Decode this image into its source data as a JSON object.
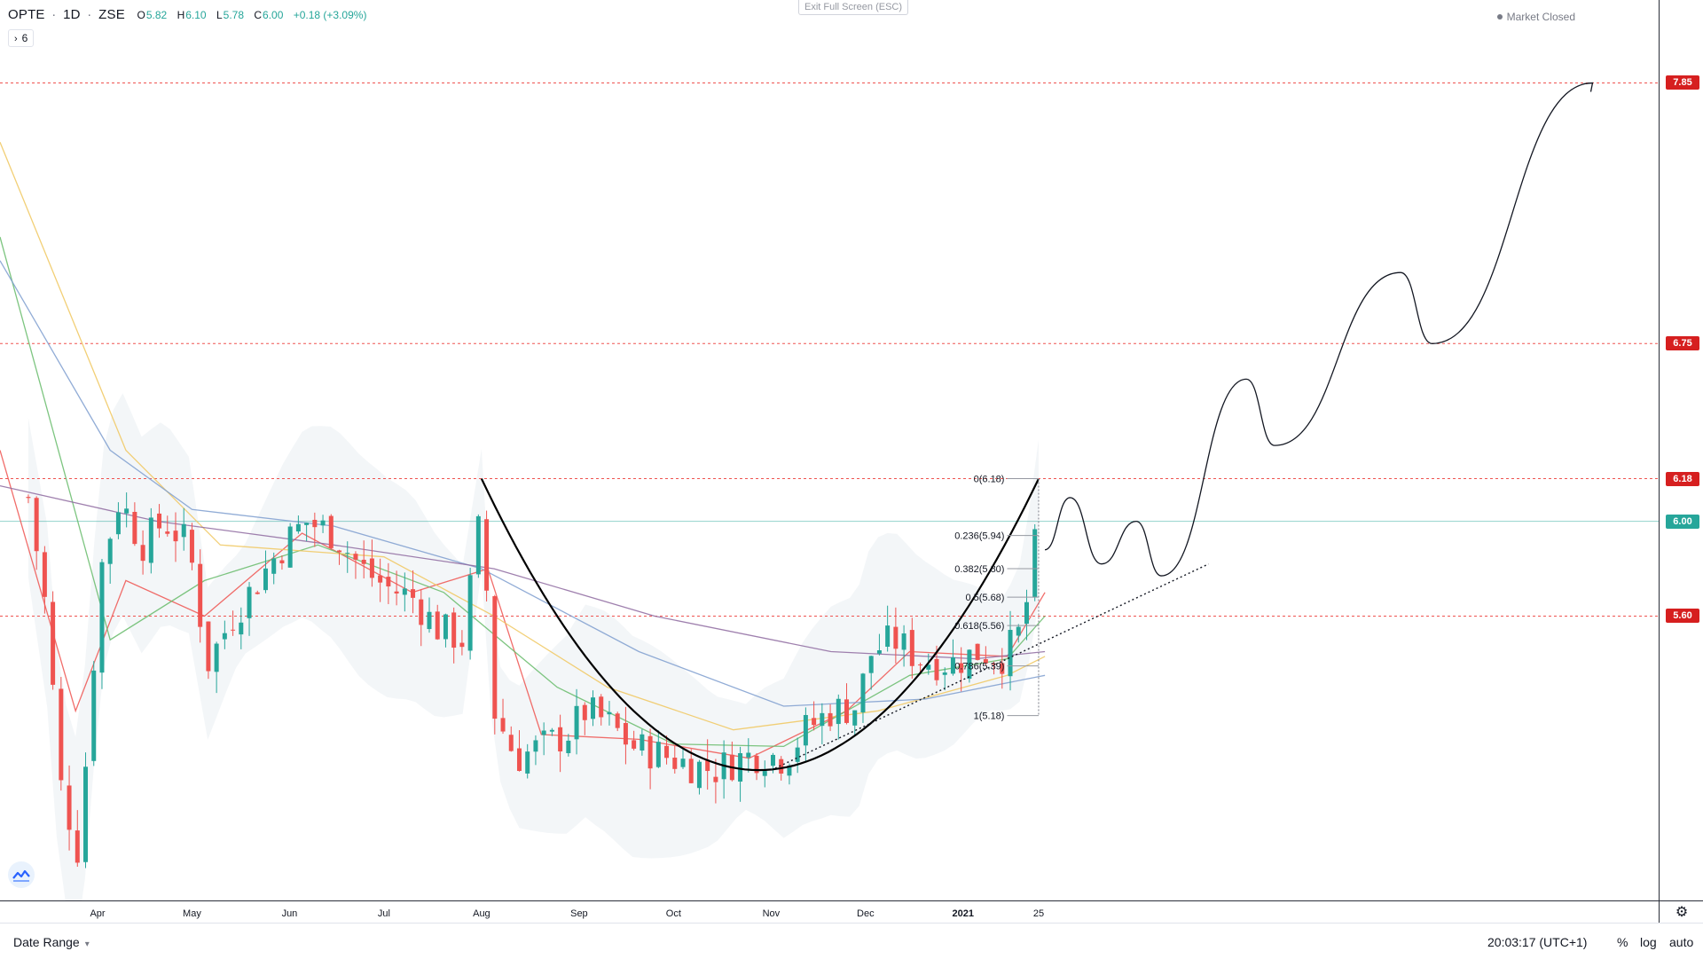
{
  "legend": {
    "symbol": "OPTE",
    "interval": "1D",
    "exchange": "ZSE",
    "open_key": "O",
    "open": "5.82",
    "high_key": "H",
    "high": "6.10",
    "low_key": "L",
    "low": "5.78",
    "close_key": "C",
    "close": "6.00",
    "change": "+0.18 (+3.09%)"
  },
  "indicator_toggle": {
    "count": "6"
  },
  "fullscreen_hint": "Exit Full Screen (ESC)",
  "market_status": "Market Closed",
  "bottom_bar": {
    "date_range_label": "Date Range",
    "clock": "20:03:17 (UTC+1)",
    "percent_label": "%",
    "log_label": "log",
    "auto_label": "auto"
  },
  "icons": [
    "chevron-right-icon",
    "chevron-down-icon",
    "gear-icon",
    "tradingview-logo-icon",
    "market-dot-icon"
  ],
  "colors": {
    "up": "#26a69a",
    "down": "#ef5350",
    "level_line": "#ef5350",
    "level_tag": "#d61f1f",
    "current_tag": "#26a69a",
    "ma_fast": "#ef5350",
    "ma_mid": "#66bb6a",
    "ma_slow": "#f0c75e",
    "ma_long": "#7e9dcf",
    "ma_longest": "#8e6aa0"
  },
  "chart_data": {
    "type": "candlestick",
    "price_range": [
      4.4,
      8.2
    ],
    "time_labels": [
      {
        "label": "Apr",
        "x": "2020-04-01"
      },
      {
        "label": "May",
        "x": "2020-05-01"
      },
      {
        "label": "Jun",
        "x": "2020-06-01"
      },
      {
        "label": "Jul",
        "x": "2020-07-01"
      },
      {
        "label": "Aug",
        "x": "2020-08-01"
      },
      {
        "label": "Sep",
        "x": "2020-09-01"
      },
      {
        "label": "Oct",
        "x": "2020-10-01"
      },
      {
        "label": "Nov",
        "x": "2020-11-01"
      },
      {
        "label": "Dec",
        "x": "2020-12-01"
      },
      {
        "label": "2021",
        "x": "2021-01-01",
        "strong": true
      },
      {
        "label": "25",
        "x": "2021-01-25"
      }
    ],
    "price_levels": [
      {
        "label": "7.85",
        "value": 7.85
      },
      {
        "label": "6.75",
        "value": 6.75
      },
      {
        "label": "6.18",
        "value": 6.18
      },
      {
        "label": "5.60",
        "value": 5.6
      }
    ],
    "current_price": {
      "label": "6.00",
      "value": 6.0
    },
    "price_series": [
      {
        "x": "2020-03-10",
        "y": 6.1
      },
      {
        "x": "2020-03-16",
        "y": 5.6
      },
      {
        "x": "2020-03-20",
        "y": 4.9
      },
      {
        "x": "2020-03-26",
        "y": 4.6
      },
      {
        "x": "2020-04-02",
        "y": 5.8
      },
      {
        "x": "2020-04-08",
        "y": 6.1
      },
      {
        "x": "2020-04-15",
        "y": 5.9
      },
      {
        "x": "2020-04-22",
        "y": 6.0
      },
      {
        "x": "2020-04-30",
        "y": 5.9
      },
      {
        "x": "2020-05-06",
        "y": 5.4
      },
      {
        "x": "2020-05-14",
        "y": 5.6
      },
      {
        "x": "2020-05-22",
        "y": 5.75
      },
      {
        "x": "2020-05-30",
        "y": 5.9
      },
      {
        "x": "2020-06-06",
        "y": 6.0
      },
      {
        "x": "2020-06-15",
        "y": 5.95
      },
      {
        "x": "2020-06-24",
        "y": 5.8
      },
      {
        "x": "2020-07-02",
        "y": 5.72
      },
      {
        "x": "2020-07-10",
        "y": 5.68
      },
      {
        "x": "2020-07-18",
        "y": 5.55
      },
      {
        "x": "2020-07-26",
        "y": 5.5
      },
      {
        "x": "2020-08-01",
        "y": 6.05
      },
      {
        "x": "2020-08-05",
        "y": 5.2
      },
      {
        "x": "2020-08-12",
        "y": 5.0
      },
      {
        "x": "2020-08-20",
        "y": 5.05
      },
      {
        "x": "2020-08-28",
        "y": 5.1
      },
      {
        "x": "2020-09-03",
        "y": 5.2
      },
      {
        "x": "2020-09-10",
        "y": 5.15
      },
      {
        "x": "2020-09-18",
        "y": 5.05
      },
      {
        "x": "2020-09-26",
        "y": 5.02
      },
      {
        "x": "2020-10-05",
        "y": 4.98
      },
      {
        "x": "2020-10-14",
        "y": 4.95
      },
      {
        "x": "2020-10-22",
        "y": 5.0
      },
      {
        "x": "2020-10-29",
        "y": 5.02
      },
      {
        "x": "2020-11-05",
        "y": 5.0
      },
      {
        "x": "2020-11-12",
        "y": 5.12
      },
      {
        "x": "2020-11-20",
        "y": 5.2
      },
      {
        "x": "2020-11-28",
        "y": 5.22
      },
      {
        "x": "2020-12-03",
        "y": 5.45
      },
      {
        "x": "2020-12-10",
        "y": 5.5
      },
      {
        "x": "2020-12-18",
        "y": 5.42
      },
      {
        "x": "2020-12-28",
        "y": 5.4
      },
      {
        "x": "2021-01-06",
        "y": 5.45
      },
      {
        "x": "2021-01-14",
        "y": 5.43
      },
      {
        "x": "2021-01-20",
        "y": 5.55
      },
      {
        "x": "2021-01-25",
        "y": 6.0
      }
    ],
    "fibonacci": [
      {
        "label": "0(6.18)",
        "value": 6.18
      },
      {
        "label": "0.236(5.94)",
        "value": 5.94
      },
      {
        "label": "0.382(5.80)",
        "value": 5.8
      },
      {
        "label": "0.5(5.68)",
        "value": 5.68
      },
      {
        "label": "0.618(5.56)",
        "value": 5.56
      },
      {
        "label": "0.786(5.39)",
        "value": 5.39
      },
      {
        "label": "1(5.18)",
        "value": 5.18
      }
    ],
    "projection_path": [
      {
        "x": "2021-01-27",
        "y": 5.88
      },
      {
        "x": "2021-02-04",
        "y": 6.1
      },
      {
        "x": "2021-02-14",
        "y": 5.82
      },
      {
        "x": "2021-02-25",
        "y": 6.0
      },
      {
        "x": "2021-03-05",
        "y": 5.77
      },
      {
        "x": "2021-04-01",
        "y": 6.6
      },
      {
        "x": "2021-04-10",
        "y": 6.32
      },
      {
        "x": "2021-05-20",
        "y": 7.05
      },
      {
        "x": "2021-05-30",
        "y": 6.75
      },
      {
        "x": "2021-07-20",
        "y": 7.85
      }
    ],
    "trendline": {
      "start": {
        "x": "2020-11-01",
        "y": 4.95
      },
      "end": {
        "x": "2021-03-20",
        "y": 5.82
      }
    },
    "cup_curve": {
      "left": {
        "x": "2020-08-01",
        "y": 6.18
      },
      "bottom": {
        "x": "2020-10-28",
        "y": 4.95
      },
      "right": {
        "x": "2021-01-25",
        "y": 6.18
      }
    },
    "moving_averages": [
      {
        "color": "#ef5350",
        "points": [
          {
            "x": "2020-03-01",
            "y": 6.3
          },
          {
            "x": "2020-03-25",
            "y": 5.2
          },
          {
            "x": "2020-04-10",
            "y": 5.75
          },
          {
            "x": "2020-05-05",
            "y": 5.6
          },
          {
            "x": "2020-06-05",
            "y": 5.95
          },
          {
            "x": "2020-07-10",
            "y": 5.7
          },
          {
            "x": "2020-08-03",
            "y": 5.8
          },
          {
            "x": "2020-08-20",
            "y": 5.1
          },
          {
            "x": "2020-09-20",
            "y": 5.08
          },
          {
            "x": "2020-10-25",
            "y": 5.0
          },
          {
            "x": "2020-11-25",
            "y": 5.2
          },
          {
            "x": "2020-12-15",
            "y": 5.45
          },
          {
            "x": "2021-01-15",
            "y": 5.43
          },
          {
            "x": "2021-01-27",
            "y": 5.7
          }
        ]
      },
      {
        "color": "#66bb6a",
        "points": [
          {
            "x": "2020-03-01",
            "y": 7.2
          },
          {
            "x": "2020-04-05",
            "y": 5.5
          },
          {
            "x": "2020-05-05",
            "y": 5.75
          },
          {
            "x": "2020-06-10",
            "y": 5.9
          },
          {
            "x": "2020-07-20",
            "y": 5.7
          },
          {
            "x": "2020-08-25",
            "y": 5.3
          },
          {
            "x": "2020-10-01",
            "y": 5.06
          },
          {
            "x": "2020-11-05",
            "y": 5.05
          },
          {
            "x": "2020-12-15",
            "y": 5.35
          },
          {
            "x": "2021-01-15",
            "y": 5.42
          },
          {
            "x": "2021-01-27",
            "y": 5.6
          }
        ]
      },
      {
        "color": "#f0c75e",
        "points": [
          {
            "x": "2020-03-01",
            "y": 7.6
          },
          {
            "x": "2020-04-10",
            "y": 6.3
          },
          {
            "x": "2020-05-10",
            "y": 5.9
          },
          {
            "x": "2020-07-01",
            "y": 5.85
          },
          {
            "x": "2020-08-05",
            "y": 5.6
          },
          {
            "x": "2020-09-10",
            "y": 5.3
          },
          {
            "x": "2020-10-20",
            "y": 5.12
          },
          {
            "x": "2020-12-05",
            "y": 5.2
          },
          {
            "x": "2021-01-15",
            "y": 5.35
          },
          {
            "x": "2021-01-27",
            "y": 5.43
          }
        ]
      },
      {
        "color": "#7e9dcf",
        "points": [
          {
            "x": "2020-03-01",
            "y": 7.1
          },
          {
            "x": "2020-04-05",
            "y": 6.3
          },
          {
            "x": "2020-05-01",
            "y": 6.05
          },
          {
            "x": "2020-06-15",
            "y": 5.98
          },
          {
            "x": "2020-08-01",
            "y": 5.8
          },
          {
            "x": "2020-09-20",
            "y": 5.45
          },
          {
            "x": "2020-11-05",
            "y": 5.22
          },
          {
            "x": "2020-12-20",
            "y": 5.25
          },
          {
            "x": "2021-01-27",
            "y": 5.35
          }
        ]
      },
      {
        "color": "#8e6aa0",
        "points": [
          {
            "x": "2020-03-01",
            "y": 6.15
          },
          {
            "x": "2020-04-20",
            "y": 6.0
          },
          {
            "x": "2020-06-15",
            "y": 5.9
          },
          {
            "x": "2020-08-05",
            "y": 5.8
          },
          {
            "x": "2020-09-25",
            "y": 5.6
          },
          {
            "x": "2020-11-20",
            "y": 5.45
          },
          {
            "x": "2021-01-05",
            "y": 5.42
          },
          {
            "x": "2021-01-27",
            "y": 5.45
          }
        ]
      }
    ]
  }
}
